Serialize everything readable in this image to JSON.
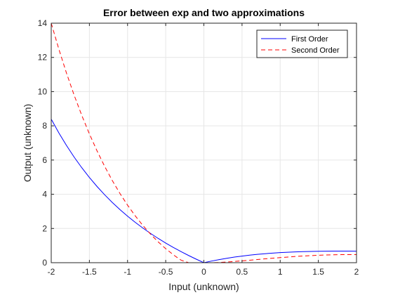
{
  "chart_data": {
    "type": "line",
    "title": "Error between exp and two approximations",
    "xlabel": "Input (unknown)",
    "ylabel": "Output (unknown)",
    "xlim": [
      -2,
      2
    ],
    "ylim": [
      0,
      14
    ],
    "xticks": [
      -2,
      -1.5,
      -1,
      -0.5,
      0,
      0.5,
      1,
      1.5,
      2
    ],
    "xtick_labels": [
      "-2",
      "-1.5",
      "-1",
      "-0.5",
      "0",
      "0.5",
      "1",
      "1.5",
      "2"
    ],
    "yticks": [
      0,
      2,
      4,
      6,
      8,
      10,
      12,
      14
    ],
    "ytick_labels": [
      "0",
      "2",
      "4",
      "6",
      "8",
      "10",
      "12",
      "14"
    ],
    "grid": true,
    "legend_position": "top-right",
    "x": [
      -2.0,
      -1.9,
      -1.8,
      -1.7,
      -1.6,
      -1.5,
      -1.4,
      -1.3,
      -1.2,
      -1.1,
      -1.0,
      -0.9,
      -0.8,
      -0.7,
      -0.6,
      -0.5,
      -0.4,
      -0.3,
      -0.2,
      -0.1,
      0.0,
      0.1,
      0.2,
      0.3,
      0.4,
      0.5,
      0.6,
      0.7,
      0.8,
      0.9,
      1.0,
      1.1,
      1.2,
      1.3,
      1.4,
      1.5,
      1.6,
      1.7,
      1.8,
      1.9,
      2.0
    ],
    "series": [
      {
        "name": "First Order",
        "color": "#0000ff",
        "style": "solid",
        "values": [
          8.389,
          7.586,
          6.85,
          6.174,
          5.553,
          4.982,
          4.455,
          3.969,
          3.52,
          3.104,
          2.718,
          2.36,
          2.026,
          1.714,
          1.422,
          1.149,
          0.892,
          0.65,
          0.421,
          0.205,
          0.0,
          0.095,
          0.181,
          0.258,
          0.327,
          0.387,
          0.44,
          0.486,
          0.526,
          0.56,
          0.589,
          0.612,
          0.632,
          0.647,
          0.659,
          0.667,
          0.673,
          0.676,
          0.677,
          0.676,
          0.673
        ]
      },
      {
        "name": "Second Order",
        "color": "#ff0000",
        "style": "dashed",
        "values": [
          14.0,
          12.48,
          11.08,
          9.794,
          8.612,
          7.529,
          6.537,
          5.63,
          4.802,
          4.048,
          3.363,
          2.741,
          2.18,
          1.675,
          1.222,
          0.819,
          0.462,
          0.15,
          0.0,
          0.0,
          0.0,
          0.0,
          0.014,
          0.04,
          0.072,
          0.108,
          0.146,
          0.185,
          0.224,
          0.262,
          0.298,
          0.331,
          0.362,
          0.39,
          0.414,
          0.434,
          0.45,
          0.462,
          0.47,
          0.473,
          0.471
        ]
      }
    ]
  }
}
